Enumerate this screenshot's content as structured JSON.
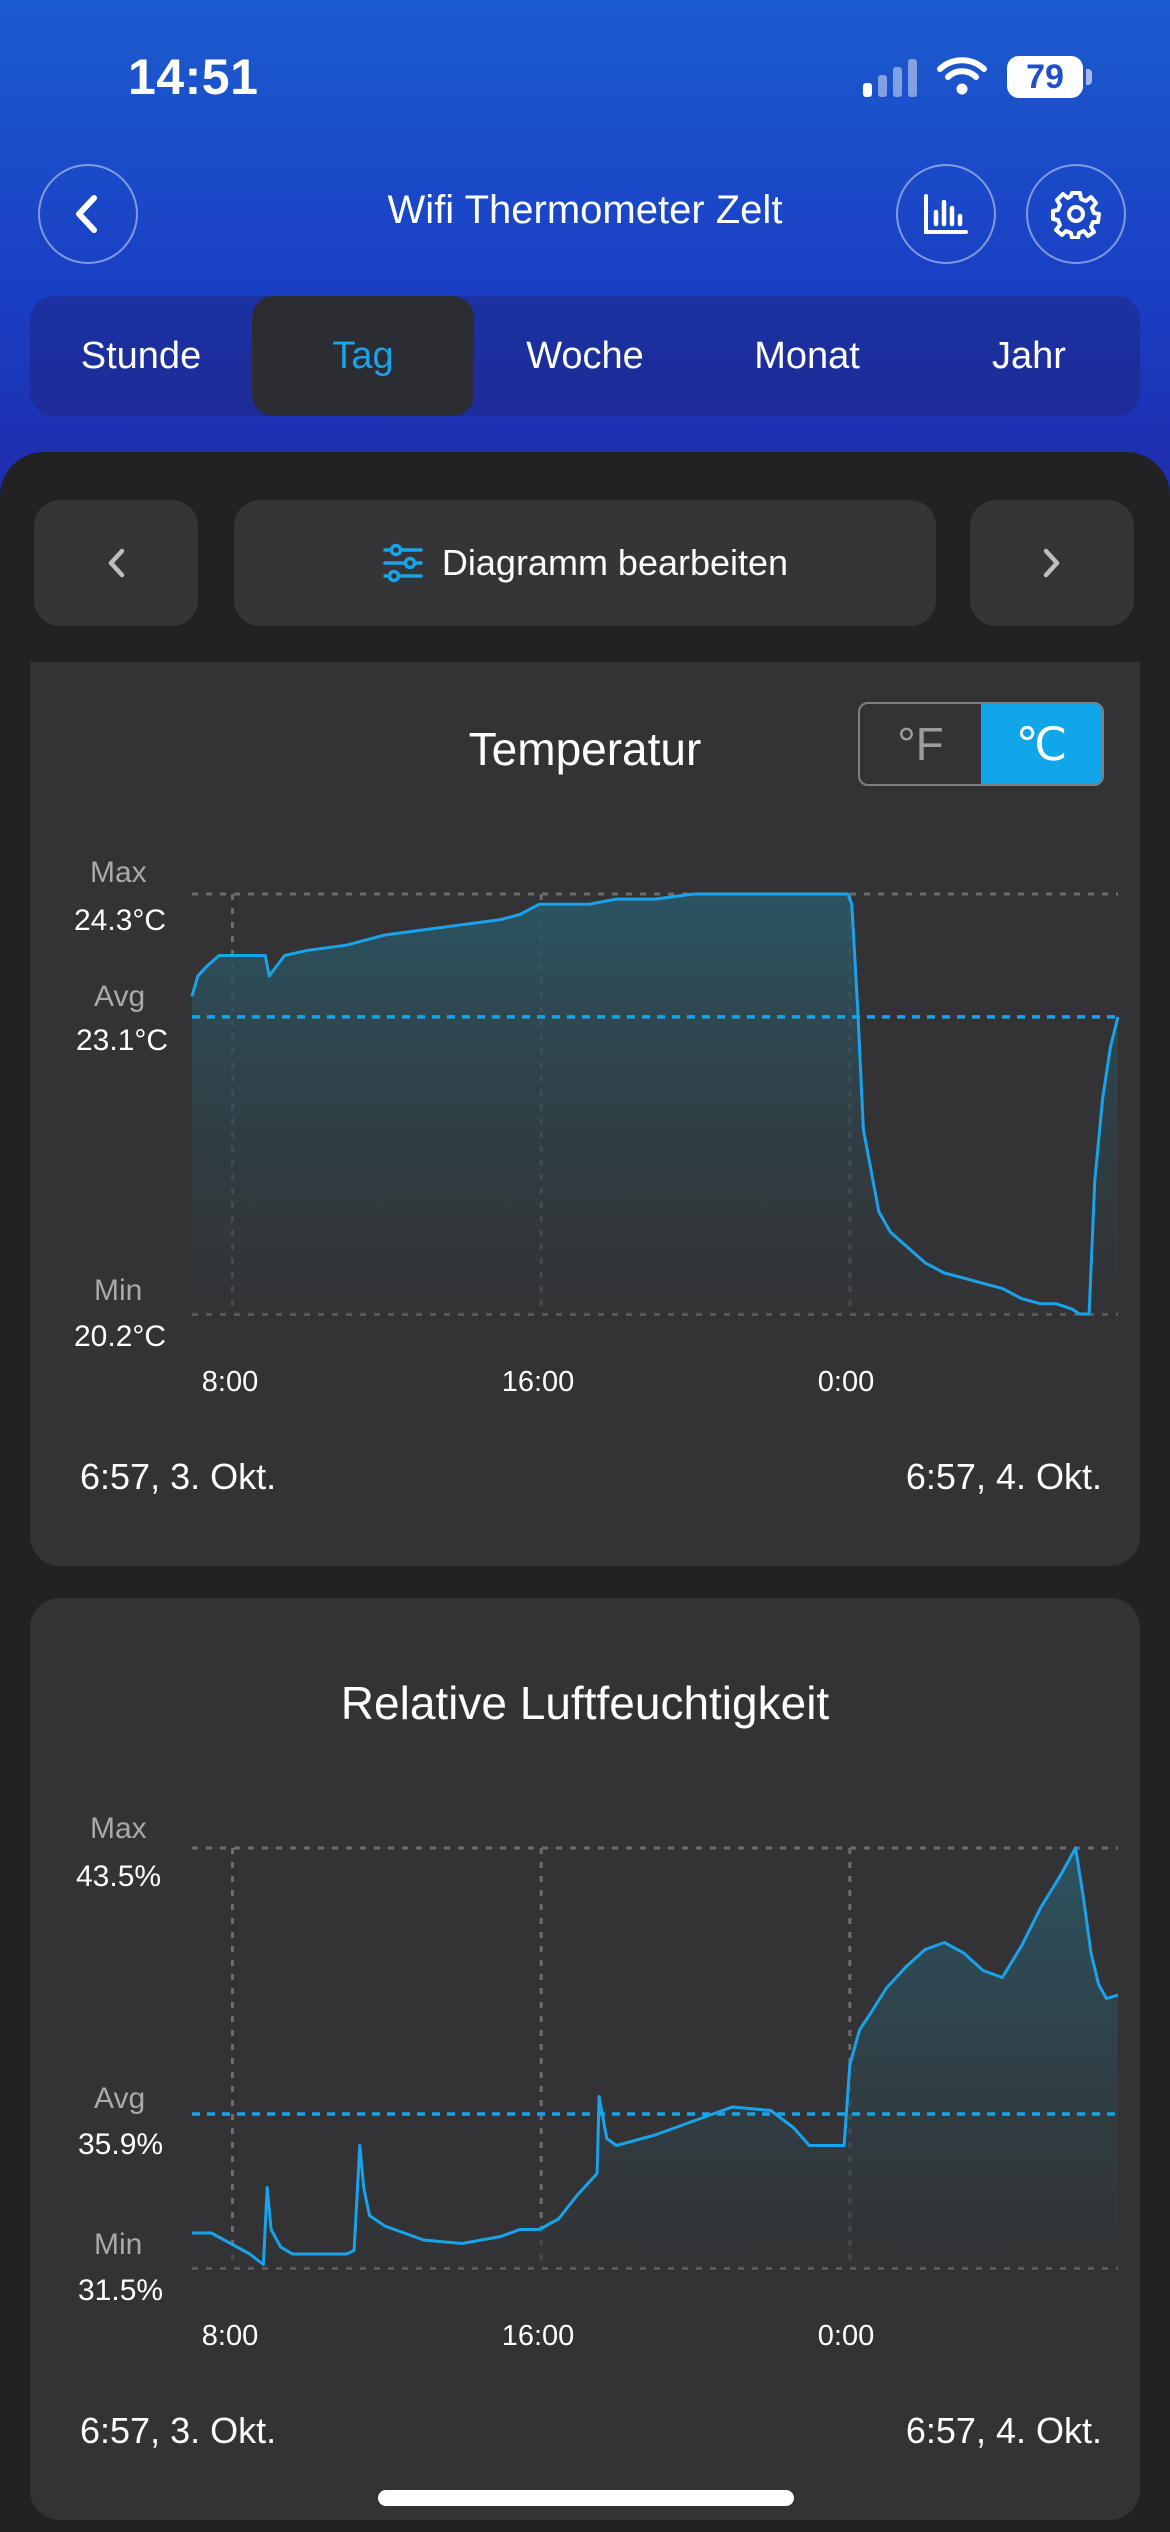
{
  "status_bar": {
    "time": "14:51",
    "battery": "79"
  },
  "header": {
    "title": "Wifi Thermometer Zelt",
    "back_icon": "chevron-left-icon",
    "chart_icon": "bar-chart-icon",
    "settings_icon": "gear-icon"
  },
  "tabs": [
    {
      "label": "Stunde",
      "active": false
    },
    {
      "label": "Tag",
      "active": true
    },
    {
      "label": "Woche",
      "active": false
    },
    {
      "label": "Monat",
      "active": false
    },
    {
      "label": "Jahr",
      "active": false
    }
  ],
  "toolbar": {
    "edit_label": "Diagramm bearbeiten",
    "prev_icon": "chevron-left-icon",
    "next_icon": "chevron-right-icon",
    "edit_icon": "sliders-icon"
  },
  "colors": {
    "accent": "#11a6ea",
    "line": "#19a3ea"
  },
  "temperature": {
    "title": "Temperatur",
    "unit_f": "°F",
    "unit_c": "℃",
    "selected_unit": "℃",
    "max_label": "Max",
    "max_value": "24.3°C",
    "avg_label": "Avg",
    "avg_value": "23.1°C",
    "min_label": "Min",
    "min_value": "20.2°C",
    "x_ticks": [
      "8:00",
      "16:00",
      "0:00"
    ],
    "range_start": "6:57,  3. Okt.",
    "range_end": "6:57,  4. Okt."
  },
  "humidity": {
    "title": "Relative Luftfeuchtigkeit",
    "max_label": "Max",
    "max_value": "43.5%",
    "avg_label": "Avg",
    "avg_value": "35.9%",
    "min_label": "Min",
    "min_value": "31.5%",
    "x_ticks": [
      "8:00",
      "16:00",
      "0:00"
    ],
    "range_start": "6:57,  3. Okt.",
    "range_end": "6:57,  4. Okt."
  },
  "chart_data": [
    {
      "type": "area",
      "title": "Temperatur",
      "x_unit": "hours since 6:57",
      "xlim": [
        0,
        24
      ],
      "ylim": [
        20.2,
        24.3
      ],
      "avg": 23.1,
      "series": [
        {
          "x": [
            0,
            0.15,
            0.4,
            0.7,
            1.0,
            1.9,
            2.0,
            2.4,
            3.0,
            4.0,
            4.5,
            5.0,
            6.0,
            7.0,
            8.0,
            8.5,
            9.0,
            9.6,
            10.3,
            11.0,
            12.0,
            13.0,
            14.0,
            15.0,
            15.8,
            16.5,
            17.0,
            17.1,
            17.25,
            17.4,
            17.6,
            17.8,
            18.1,
            18.4,
            18.7,
            19.0,
            19.5,
            20.0,
            20.5,
            21.0,
            21.5,
            22.0,
            22.4,
            22.8,
            23.0,
            23.1,
            23.25,
            23.4,
            23.6,
            23.8,
            24.0
          ],
          "y": [
            23.3,
            23.5,
            23.6,
            23.7,
            23.7,
            23.7,
            23.5,
            23.7,
            23.75,
            23.8,
            23.85,
            23.9,
            23.95,
            24.0,
            24.05,
            24.1,
            24.2,
            24.2,
            24.2,
            24.25,
            24.25,
            24.3,
            24.3,
            24.3,
            24.3,
            24.3,
            24.3,
            24.2,
            23.2,
            22.0,
            21.6,
            21.2,
            21.0,
            20.9,
            20.8,
            20.7,
            20.6,
            20.55,
            20.5,
            20.45,
            20.35,
            20.3,
            20.3,
            20.25,
            20.2,
            20.2,
            20.2,
            21.5,
            22.3,
            22.8,
            23.1
          ]
        }
      ]
    },
    {
      "type": "area",
      "title": "Relative Luftfeuchtigkeit",
      "x_unit": "hours since 6:57",
      "xlim": [
        0,
        24
      ],
      "ylim": [
        31.5,
        43.5
      ],
      "avg": 35.9,
      "series": [
        {
          "x": [
            0,
            0.3,
            0.5,
            1.0,
            1.5,
            1.85,
            1.95,
            2.05,
            2.3,
            2.6,
            3.0,
            3.5,
            4.0,
            4.2,
            4.35,
            4.45,
            4.6,
            5.0,
            5.5,
            6.0,
            7.0,
            8.0,
            8.5,
            9.0,
            9.5,
            10.0,
            10.5,
            10.55,
            10.75,
            11.0,
            12.0,
            13.0,
            13.5,
            14.0,
            15.0,
            15.6,
            16.0,
            16.4,
            16.9,
            17.05,
            17.3,
            17.6,
            18.0,
            18.5,
            19.0,
            19.5,
            20.0,
            20.5,
            21.0,
            21.5,
            22.0,
            22.5,
            22.9,
            23.1,
            23.3,
            23.5,
            23.7,
            24.0
          ],
          "y": [
            32.5,
            32.5,
            32.5,
            32.2,
            31.9,
            31.6,
            33.8,
            32.6,
            32.1,
            31.9,
            31.9,
            31.9,
            31.9,
            32.0,
            35.0,
            33.8,
            33.0,
            32.7,
            32.5,
            32.3,
            32.2,
            32.4,
            32.6,
            32.6,
            32.9,
            33.6,
            34.2,
            36.4,
            35.2,
            35.0,
            35.3,
            35.7,
            35.9,
            36.1,
            36.0,
            35.5,
            35.0,
            35.0,
            35.0,
            37.3,
            38.3,
            38.8,
            39.5,
            40.1,
            40.6,
            40.8,
            40.5,
            40.0,
            39.8,
            40.7,
            41.8,
            42.7,
            43.5,
            42.1,
            40.5,
            39.6,
            39.2,
            39.3
          ]
        }
      ]
    }
  ]
}
